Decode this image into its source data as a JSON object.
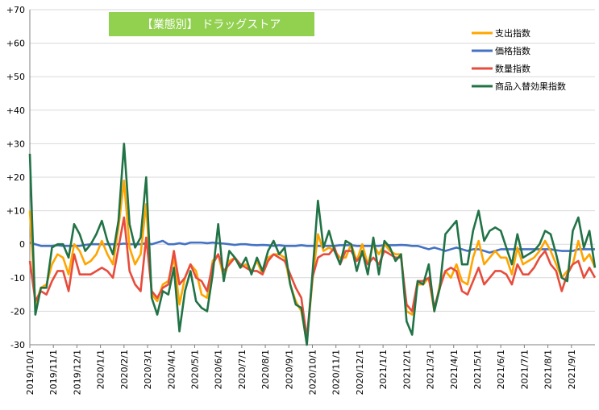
{
  "chart_data": {
    "type": "line",
    "title": "【業態別】 ドラッグストア",
    "title_bg": "#92D050",
    "ylim": [
      -30,
      70
    ],
    "y_ticks": [
      70,
      60,
      50,
      40,
      30,
      20,
      10,
      0,
      -10,
      -20,
      -30
    ],
    "y_tick_labels": [
      "+70",
      "+60",
      "+50",
      "+40",
      "+30",
      "+20",
      "+10",
      "0",
      "-10",
      "-20",
      "-30"
    ],
    "x_tick_labels": [
      "2019/10/1",
      "2019/11/1",
      "2019/12/1",
      "2020/1/1",
      "2020/2/1",
      "2020/3/1",
      "2020/4/1",
      "2020/5/1",
      "2020/6/1",
      "2020/7/1",
      "2020/8/1",
      "2020/9/1",
      "2020/10/1",
      "2020/11/1",
      "2020/12/1",
      "2021/1/1",
      "2021/2/1",
      "2021/3/1",
      "2021/4/1",
      "2021/5/1",
      "2021/6/1",
      "2021/7/1",
      "2021/8/1",
      "2021/9/1"
    ],
    "grid": true,
    "legend_position": "top-right",
    "series": [
      {
        "name": "支出指数",
        "color": "#FFA500",
        "values": [
          10,
          -18,
          -13,
          -12,
          -6,
          -3,
          -4,
          -9,
          0,
          -2,
          -6,
          -5,
          -3,
          1,
          -3,
          -6,
          5,
          19,
          -1,
          -6,
          -3,
          12,
          -15,
          -17,
          -12,
          -11,
          -4,
          -18,
          -10,
          -6,
          -8,
          -15,
          -16,
          -5,
          -3,
          -10,
          -5,
          -4,
          -7,
          -6,
          -8,
          -5,
          -9,
          -4,
          -3,
          -3,
          -4,
          -12,
          -17,
          -20,
          -29,
          -11,
          3,
          -2,
          -1,
          -2,
          -4,
          -4,
          0,
          -5,
          0,
          -6,
          0,
          -3,
          0,
          -2,
          -3,
          -3,
          -20,
          -21,
          -12,
          -12,
          -10,
          -20,
          -12,
          -8,
          -10,
          -6,
          -11,
          -12,
          -4,
          1,
          -6,
          -4,
          -2,
          -4,
          -4,
          -9,
          -1,
          -6,
          -5,
          -4,
          -2,
          1,
          -2,
          -6,
          -10,
          -8,
          -6,
          1,
          -5,
          -3,
          -7
        ]
      },
      {
        "name": "価格指数",
        "color": "#4472C4",
        "values": [
          0.5,
          0,
          -0.5,
          -0.5,
          -0.5,
          -0.3,
          -0.5,
          -0.5,
          -0.5,
          -0.5,
          -0.2,
          0,
          0,
          0,
          0,
          0,
          0,
          0.2,
          0,
          0,
          0,
          0.3,
          0,
          0.5,
          1,
          0,
          0,
          0.3,
          0,
          0.5,
          0.5,
          0.5,
          0.3,
          0.5,
          0.3,
          0.2,
          0,
          -0.2,
          0,
          0,
          -0.2,
          -0.3,
          -0.2,
          -0.3,
          -0.5,
          -0.3,
          -0.5,
          -0.5,
          -0.5,
          -0.3,
          -0.5,
          -0.5,
          -0.5,
          -0.5,
          -0.5,
          -0.5,
          -0.3,
          -0.3,
          -0.3,
          -0.5,
          -0.5,
          -0.5,
          -0.5,
          -0.5,
          -0.3,
          -0.3,
          -0.3,
          -0.2,
          -0.3,
          -0.5,
          -0.5,
          -1,
          -1.5,
          -1,
          -1.5,
          -2,
          -1.5,
          -1,
          -1.5,
          -2,
          -1.5,
          -1.5,
          -2,
          -2.5,
          -2,
          -1.5,
          -1.5,
          -1.5,
          -1.5,
          -1.5,
          -1.5,
          -1.5,
          -1.5,
          -1.5,
          -1.5,
          -1.8,
          -2,
          -2,
          -2,
          -1.5,
          -1.5,
          -1.5,
          -1.5
        ]
      },
      {
        "name": "数量指数",
        "color": "#E74C3C",
        "values": [
          -5,
          -17,
          -14,
          -15,
          -11,
          -8,
          -8,
          -14,
          -3,
          -9,
          -9,
          -9,
          -8,
          -7,
          -8,
          -10,
          -1,
          8,
          -8,
          -12,
          -14,
          2,
          -14,
          -16,
          -13,
          -12,
          -2,
          -12,
          -10,
          -6,
          -10,
          -11,
          -14,
          -6,
          -3,
          -8,
          -6,
          -4,
          -6,
          -7,
          -8,
          -8,
          -9,
          -5,
          -3,
          -4,
          -5,
          -9,
          -13,
          -16,
          -28,
          -10,
          -4,
          -3,
          -3,
          -1,
          -6,
          -2,
          -2,
          -5,
          -3,
          -6,
          -4,
          -6,
          -2,
          -3,
          -4,
          -4,
          -18,
          -20,
          -11,
          -11,
          -10,
          -19,
          -13,
          -8,
          -7,
          -8,
          -14,
          -15,
          -11,
          -7,
          -12,
          -10,
          -8,
          -8,
          -9,
          -12,
          -6,
          -9,
          -9,
          -7,
          -4,
          -2,
          -6,
          -8,
          -14,
          -9,
          -6,
          -5,
          -10,
          -7,
          -10
        ]
      },
      {
        "name": "商品入替効果指数",
        "color": "#217346",
        "values": [
          27,
          -21,
          -13,
          -13,
          -1,
          0,
          0,
          -4,
          6,
          3,
          -2,
          0,
          3,
          7,
          1,
          -3,
          7,
          30,
          6,
          -1,
          2,
          20,
          -16,
          -21,
          -14,
          -15,
          -7,
          -26,
          -14,
          -8,
          -17,
          -19,
          -20,
          -9,
          6,
          -11,
          -2,
          -4,
          -7,
          -4,
          -9,
          -4,
          -8,
          -2,
          1,
          -3,
          -1,
          -12,
          -18,
          -19,
          -30,
          -9,
          13,
          -1,
          4,
          -2,
          -6,
          1,
          0,
          -8,
          -2,
          -9,
          2,
          -9,
          1,
          -1,
          -5,
          -3,
          -23,
          -27,
          -11,
          -12,
          -6,
          -20,
          -13,
          3,
          5,
          7,
          -6,
          -6,
          4,
          10,
          1,
          4,
          5,
          4,
          -1,
          -6,
          3,
          -4,
          -3,
          -2,
          0,
          4,
          3,
          -3,
          -10,
          -11,
          4,
          8,
          -1,
          4,
          -7
        ]
      }
    ]
  }
}
